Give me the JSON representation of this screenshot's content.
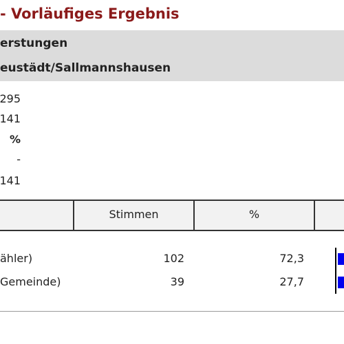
{
  "header": {
    "title": "- Vorläufiges Ergebnis",
    "line1": "erstungen",
    "line2": "eustädt/Sallmannshausen"
  },
  "summary": [
    "295",
    "141",
    "%",
    "-",
    "141"
  ],
  "table": {
    "columns": [
      "Stimmen",
      "%"
    ],
    "rows": [
      {
        "name": "ähler)",
        "votes": "102",
        "percent": {
          "value": 72.3,
          "label": "72,3"
        }
      },
      {
        "name": "Gemeinde)",
        "votes": "39",
        "percent": {
          "value": 27.7,
          "label": "27,7"
        }
      }
    ]
  }
}
